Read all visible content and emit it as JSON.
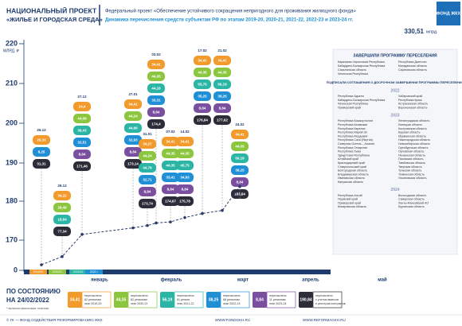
{
  "header": {
    "project": "НАЦИОНАЛЬНЫЙ ПРОЕКТ",
    "project_name": "«ЖИЛЬЕ И ГОРОДСКАЯ СРЕДА»",
    "federal": "Федеральный проект «Обеспечение устойчивого сокращения непригодного для проживания жилищного фонда»",
    "subtitle": "Динамика перечисления средств субъектам РФ по этапам 2019-20, 2020-21, 2021-22, 2022-23 и 2023-24 гг.",
    "total": "330,51",
    "total_unit": "млрд.",
    "logo": "ФОНД ЖКХ"
  },
  "chart_data": {
    "type": "line",
    "y_unit": "МЛРД. ₽",
    "ylim": [
      0,
      220
    ],
    "yticks": [
      0,
      170,
      180,
      190,
      200,
      210,
      220
    ],
    "categories": [
      "26.12",
      "29.12",
      "27.12",
      "27.01",
      "31.01",
      "03.02",
      "07.02",
      "14.02",
      "17.02",
      "21.02",
      "24.02"
    ],
    "series": [
      {
        "color": "#2b3a67",
        "values": [
          31.31,
          77.34,
          171.46,
          173.14,
          173.74,
          174.4,
          174.67,
          175.78,
          176.84,
          177.62,
          183.84
        ],
        "value_labels": [
          "31,31",
          "77,34",
          "171,46",
          "173,14",
          "173,74",
          "174,4",
          "174,67",
          "175,78",
          "176,84",
          "177,62",
          "183,84"
        ]
      }
    ],
    "stage_values": [
      [
        "26,10",
        null,
        null,
        "8,25",
        null
      ],
      [
        "34,22",
        "28,48",
        "18,84",
        null,
        null
      ],
      [
        "24,4",
        "44,09",
        "38,43",
        "32,51",
        "8,84"
      ],
      [
        "34,41",
        "44,24",
        "44,99",
        "32,93",
        "8,84"
      ],
      [
        "34,27",
        "44,24",
        "44,76",
        "32,71",
        "8,84"
      ],
      [
        "34,41",
        "44,35",
        "44,18",
        "33,31",
        "8,84"
      ],
      [
        "34,41",
        "44,35",
        "44,35",
        "33,41",
        "8,84"
      ],
      [
        "34,41",
        "44,35",
        "45,75",
        "34,93",
        "8,84"
      ],
      [
        "34,41",
        "44,35",
        "55,75",
        "35,25",
        "8,84"
      ],
      [
        "34,41",
        "44,35",
        "56,19",
        "36,25",
        "8,84"
      ],
      [
        "34,41",
        "44,35",
        "56,19",
        "38,25",
        "8,84"
      ]
    ],
    "periods": [
      "2019/20",
      "2020/21",
      "2021/22",
      "2022 г."
    ],
    "months": [
      "январь",
      "февраль",
      "март",
      "апрель",
      "май"
    ],
    "stages": [
      {
        "value": "34,41",
        "color": "#f39a2c",
        "lines": [
          "перечислено",
          "82 регионам",
          "этап 2019-20"
        ]
      },
      {
        "value": "44,35",
        "color": "#8cc63f",
        "lines": [
          "перечислено",
          "82 регионам",
          "этап 2020-21"
        ]
      },
      {
        "value": "56,19",
        "color": "#2bb5a5",
        "lines": [
          "перечислено",
          "81 регион",
          "этап 2021-22"
        ]
      },
      {
        "value": "38,25",
        "color": "#1f8fd6",
        "lines": [
          "перечислено",
          "68 регионам",
          "этап 2022-23"
        ]
      },
      {
        "value": "8,84",
        "color": "#7b4fa0",
        "lines": [
          "перечислено",
          "11 регионам",
          "этап 2023-24"
        ]
      },
      {
        "value": "190,84",
        "color": "#2d2d3a",
        "lines": [
          "перечислено",
          "с учетом авансов",
          "и реестров контрактов"
        ]
      }
    ]
  },
  "status": {
    "label": "ПО СОСТОЯНИЮ",
    "date": "НА 24/02/2022",
    "note": "* включая авансовые платежи"
  },
  "panel": {
    "done_title": "ЗАВЕРШИЛИ ПРОГРАММУ ПЕРЕСЕЛЕНИЯ",
    "done": [
      "Карачаево-Черкесская Республика",
      "Кабардино-Балкарская Республика",
      "Сахалинская область",
      "Чеченская Республика",
      "Республика Дагестан",
      "Магаданская область",
      "Саратовская область"
    ],
    "signed_title": "ПОДПИСАЛИ СОГЛАШЕНИЯ О ДОСРОЧНОМ ЗАВЕРШЕНИИ ПРОГРАММЫ ПЕРЕСЕЛЕНИЯ",
    "groups": [
      {
        "year": "2022",
        "regions": [
          "Республика Адыгея",
          "Кабардино-Балкарская Республика",
          "Чеченская Республика",
          "Приморский край",
          "Хабаровский край",
          "Республика Крым",
          "Астраханская область",
          "Воронежская область"
        ]
      },
      {
        "year": "2023",
        "regions": [
          "Республика Башкортостан",
          "Республика Калмыкия",
          "Республика Карелия",
          "Республика Марий Эл",
          "Республика Мордовия",
          "Республика Саха (Якутия)",
          "Северная Осетия – Алания",
          "Республика Татарстан",
          "Республика Тыва",
          "Удмуртская Республика",
          "Алтайский край",
          "Краснодарский край",
          "Ставропольский край",
          "Белгородская область",
          "Владимирская область",
          "Ивановская область",
          "Калужская область",
          "Ленинградская область",
          "Липецкая область",
          "Костромская область",
          "Курская область",
          "Мурманская область",
          "Нижегородская область",
          "Новосибирская область",
          "Оренбургская область",
          "Орловская область",
          "Пензенская область",
          "Псковская область",
          "Тамбовская область",
          "Тверская область",
          "Тульская область",
          "Тюменская область",
          "Ульяновская область"
        ]
      },
      {
        "year": "2024",
        "regions": [
          "Республика Алтай",
          "Пермский край",
          "Приморский край",
          "Кемеровская область",
          "Вологодская область",
          "Самарская область",
          "Ханты-Мансийский АО",
          "Курганская область"
        ]
      }
    ]
  },
  "footer": {
    "copyright": "© ГК — ФОНД СОДЕЙСТВИЯ РЕФОРМИРОВАНИЮ ЖКХ",
    "site1": "WWW.FONDGKH.RU",
    "site2": "WWW.REFORMAGKH.RU"
  }
}
